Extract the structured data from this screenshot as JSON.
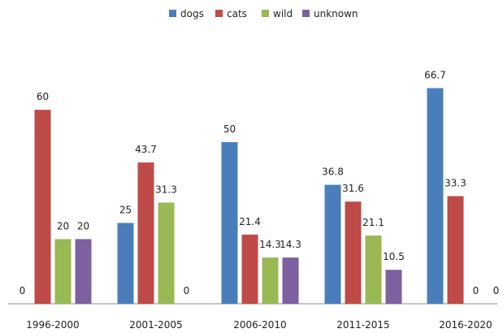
{
  "chart_data": {
    "type": "bar",
    "title": "",
    "xlabel": "",
    "ylabel": "",
    "ylim": [
      0,
      75
    ],
    "grid": false,
    "legend_position": "top",
    "categories": [
      "1996-2000",
      "2001-2005",
      "2006-2010",
      "2011-2015",
      "2016-2020"
    ],
    "series": [
      {
        "name": "dogs",
        "color": "#4A7EBB",
        "values": [
          0,
          25,
          50,
          36.8,
          66.7
        ],
        "labels": [
          "0",
          "25",
          "50",
          "36.8",
          "66.7"
        ]
      },
      {
        "name": "cats",
        "color": "#BE4B48",
        "values": [
          60,
          43.7,
          21.4,
          31.6,
          33.3
        ],
        "labels": [
          "60",
          "43.7",
          "21.4",
          "31.6",
          "33.3"
        ]
      },
      {
        "name": "wild",
        "color": "#98B954",
        "values": [
          20,
          31.3,
          14.3,
          21.1,
          0
        ],
        "labels": [
          "20",
          "31.3",
          "14.3",
          "21.1",
          "0"
        ]
      },
      {
        "name": "unknown",
        "color": "#7D60A0",
        "values": [
          20,
          0,
          14.3,
          10.5,
          0
        ],
        "labels": [
          "20",
          "0",
          "14.3",
          "10.5",
          "0"
        ]
      }
    ]
  }
}
